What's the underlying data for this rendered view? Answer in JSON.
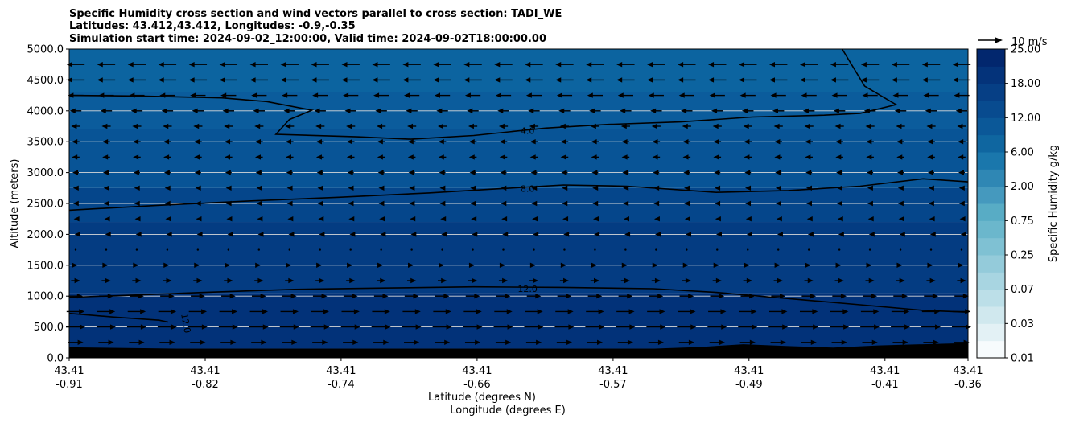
{
  "title_lines": [
    "Specific Humidity cross section and wind vectors parallel to cross section: TADI_WE",
    "Latitudes: 43.412,43.412, Longitudes: -0.9,-0.35",
    "Simulation start time: 2024-09-02_12:00:00, Valid time: 2024-09-02T18:00:00.00"
  ],
  "chart_data": {
    "type": "contourf",
    "ylabel": "Altitude (meters)",
    "xlabel_lines": [
      "Latitude (degrees N)",
      "Longitude (degrees E)"
    ],
    "ylim": [
      0,
      5000
    ],
    "yticks": [
      0,
      500,
      1000,
      1500,
      2000,
      2500,
      3000,
      3500,
      4000,
      4500,
      5000
    ],
    "ytick_labels": [
      "0.0",
      "500.0",
      "1000.0",
      "1500.0",
      "2000.0",
      "2500.0",
      "3000.0",
      "3500.0",
      "4000.0",
      "4500.0",
      "5000.0"
    ],
    "xticks": [
      {
        "lat": "43.41",
        "lon": "-0.91"
      },
      {
        "lat": "43.41",
        "lon": "-0.82"
      },
      {
        "lat": "43.41",
        "lon": "-0.74"
      },
      {
        "lat": "43.41",
        "lon": "-0.66"
      },
      {
        "lat": "43.41",
        "lon": "-0.57"
      },
      {
        "lat": "43.41",
        "lon": "-0.49"
      },
      {
        "lat": "43.41",
        "lon": "-0.41"
      },
      {
        "lat": "43.41",
        "lon": "-0.36"
      }
    ],
    "xtick_positions": [
      0,
      0.1513,
      0.3025,
      0.4538,
      0.6051,
      0.7563,
      0.9076,
      1.0
    ],
    "grid": "horizontal",
    "quiver_key_label": "10 m/s",
    "colorbar": {
      "label": "Specific Humidity g/kg",
      "tick_labels": [
        "0.01",
        "0.03",
        "0.07",
        "0.25",
        "0.75",
        "2.00",
        "6.00",
        "12.00",
        "18.00",
        "25.00"
      ],
      "levels": 18,
      "colors": [
        "#f7fbfd",
        "#e3f1f5",
        "#d0e8ee",
        "#bcdfe8",
        "#a8d5e1",
        "#94cbda",
        "#7fc1d3",
        "#6bb7cc",
        "#58acc5",
        "#4599be",
        "#2f87b4",
        "#1a77ac",
        "#0f66a0",
        "#0b5898",
        "#084b8f",
        "#063f85",
        "#04337a",
        "#02276e"
      ]
    },
    "contour_lines": [
      {
        "label": "4.0",
        "label_at": [
          4.0,
          3.73
        ],
        "label_pos": [
          0.51,
          3680
        ],
        "points": [
          [
            0.0,
            4250
          ],
          [
            0.08,
            4240
          ],
          [
            0.17,
            4210
          ],
          [
            0.22,
            4150
          ],
          [
            0.27,
            4010
          ],
          [
            0.245,
            3860
          ],
          [
            0.23,
            3620
          ],
          [
            0.32,
            3580
          ],
          [
            0.38,
            3540
          ],
          [
            0.45,
            3600
          ],
          [
            0.53,
            3720
          ],
          [
            0.6,
            3780
          ],
          [
            0.68,
            3820
          ],
          [
            0.76,
            3900
          ],
          [
            0.84,
            3930
          ],
          [
            0.88,
            3960
          ],
          [
            0.92,
            4100
          ],
          [
            0.885,
            4400
          ],
          [
            0.86,
            5000
          ]
        ]
      },
      {
        "label": "8.0",
        "label_pos": [
          0.51,
          2740
        ],
        "points": [
          [
            0.0,
            2390
          ],
          [
            0.1,
            2470
          ],
          [
            0.2,
            2540
          ],
          [
            0.3,
            2600
          ],
          [
            0.4,
            2670
          ],
          [
            0.48,
            2740
          ],
          [
            0.55,
            2800
          ],
          [
            0.62,
            2780
          ],
          [
            0.72,
            2680
          ],
          [
            0.8,
            2710
          ],
          [
            0.88,
            2780
          ],
          [
            0.95,
            2900
          ],
          [
            1.0,
            2850
          ]
        ]
      },
      {
        "label": "12.0",
        "label_pos": [
          0.51,
          1120
        ],
        "points": [
          [
            0.0,
            980
          ],
          [
            0.06,
            1010
          ],
          [
            0.15,
            1060
          ],
          [
            0.25,
            1110
          ],
          [
            0.35,
            1130
          ],
          [
            0.45,
            1150
          ],
          [
            0.55,
            1140
          ],
          [
            0.65,
            1120
          ],
          [
            0.72,
            1060
          ],
          [
            0.8,
            960
          ],
          [
            0.88,
            860
          ],
          [
            0.95,
            770
          ],
          [
            1.0,
            740
          ]
        ]
      },
      {
        "label": "12.0",
        "label_pos": [
          0.13,
          560
        ],
        "label_rotate": 80,
        "points": [
          [
            0.0,
            720
          ],
          [
            0.05,
            660
          ],
          [
            0.1,
            610
          ],
          [
            0.11,
            580
          ]
        ]
      }
    ],
    "bands": [
      {
        "lo": 0,
        "hi": 150,
        "color": "#000000"
      },
      {
        "lo": 150,
        "hi": 1050,
        "color": "#023279"
      },
      {
        "lo": 1050,
        "hi": 2200,
        "color": "#043c82"
      },
      {
        "lo": 2200,
        "hi": 2750,
        "color": "#05468b"
      },
      {
        "lo": 2750,
        "hi": 3700,
        "color": "#085496"
      },
      {
        "lo": 3700,
        "hi": 4300,
        "color": "#0b5c9c"
      },
      {
        "lo": 4300,
        "hi": 5000,
        "color": "#0c64a0"
      }
    ],
    "wind_rows": [
      {
        "z": 250,
        "u": 6.0
      },
      {
        "z": 500,
        "u": 7.5
      },
      {
        "z": 750,
        "u": 7.0
      },
      {
        "z": 1000,
        "u": 5.5
      },
      {
        "z": 1250,
        "u": 3.5
      },
      {
        "z": 1500,
        "u": 1.5
      },
      {
        "z": 1750,
        "u": 0.5
      },
      {
        "z": 2000,
        "u": -0.8
      },
      {
        "z": 2250,
        "u": -1.5
      },
      {
        "z": 2500,
        "u": -2.0
      },
      {
        "z": 2750,
        "u": -2.0
      },
      {
        "z": 3000,
        "u": -2.5
      },
      {
        "z": 3250,
        "u": -3.0
      },
      {
        "z": 3500,
        "u": -3.0
      },
      {
        "z": 3750,
        "u": -3.5
      },
      {
        "z": 4000,
        "u": -4.5
      },
      {
        "z": 4250,
        "u": -6.0
      },
      {
        "z": 4500,
        "u": -7.0
      },
      {
        "z": 4750,
        "u": -7.0
      }
    ],
    "wind_columns": 30
  }
}
